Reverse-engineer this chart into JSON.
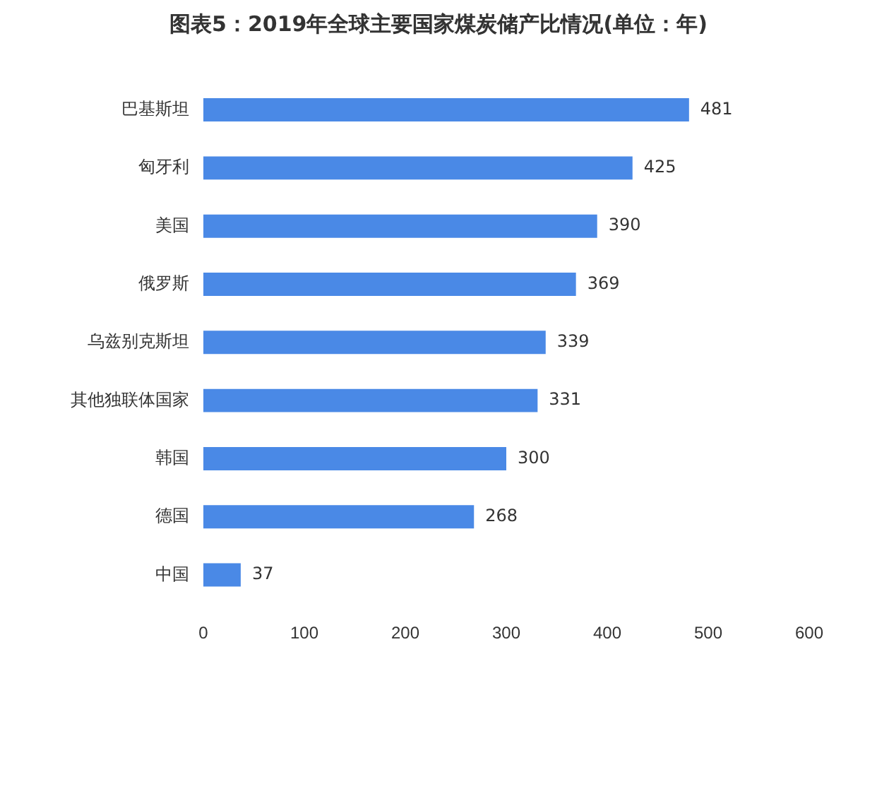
{
  "chart_data": {
    "type": "bar",
    "orientation": "horizontal",
    "title": "图表5：2019年全球主要国家煤炭储产比情况(单位：年)",
    "categories": [
      "巴基斯坦",
      "匈牙利",
      "美国",
      "俄罗斯",
      "乌兹别克斯坦",
      "其他独联体国家",
      "韩国",
      "德国",
      "中国"
    ],
    "values": [
      481,
      425,
      390,
      369,
      339,
      331,
      300,
      268,
      37
    ],
    "color": "#4a89e6",
    "xlim": [
      0,
      600
    ],
    "xticks": [
      0,
      100,
      200,
      300,
      400,
      500,
      600
    ],
    "data_labels": true,
    "grid": false,
    "legend": false
  }
}
